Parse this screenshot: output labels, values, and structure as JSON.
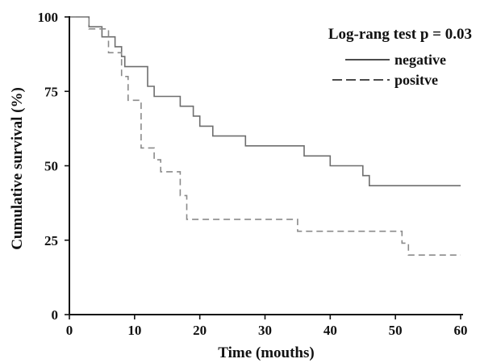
{
  "chart_data": {
    "type": "line",
    "subtype": "kaplan-meier step",
    "xlabel": "Time (mouths)",
    "ylabel": "Cumulative survival (%)",
    "xlim": [
      0,
      60
    ],
    "ylim": [
      0,
      100
    ],
    "xticks": [
      "0",
      "10",
      "20",
      "30",
      "40",
      "50",
      "60"
    ],
    "yticks": [
      "0",
      "25",
      "50",
      "75",
      "100"
    ],
    "grid": false,
    "legend_position": "top-right",
    "annotation": "Log-rang test p = 0.03",
    "series": [
      {
        "name": "negative",
        "color": "#6e6e6e",
        "line_style": "solid",
        "points": [
          [
            0,
            100
          ],
          [
            3,
            100
          ],
          [
            3,
            96.7
          ],
          [
            5,
            96.7
          ],
          [
            5,
            93.3
          ],
          [
            7,
            93.3
          ],
          [
            7,
            90
          ],
          [
            8,
            90
          ],
          [
            8,
            86.7
          ],
          [
            8.5,
            86.7
          ],
          [
            8.5,
            83.3
          ],
          [
            12,
            83.3
          ],
          [
            12,
            76.7
          ],
          [
            13,
            76.7
          ],
          [
            13,
            73.3
          ],
          [
            17,
            73.3
          ],
          [
            17,
            70
          ],
          [
            19,
            70
          ],
          [
            19,
            66.7
          ],
          [
            20,
            66.7
          ],
          [
            20,
            63.3
          ],
          [
            22,
            63.3
          ],
          [
            22,
            60
          ],
          [
            27,
            60
          ],
          [
            27,
            56.7
          ],
          [
            36,
            56.7
          ],
          [
            36,
            53.3
          ],
          [
            40,
            53.3
          ],
          [
            40,
            50
          ],
          [
            45,
            50
          ],
          [
            45,
            46.7
          ],
          [
            46,
            46.7
          ],
          [
            46,
            43.3
          ],
          [
            60,
            43.3
          ]
        ]
      },
      {
        "name": "positve",
        "color": "#8a8a8a",
        "line_style": "dashed",
        "points": [
          [
            0,
            100
          ],
          [
            3,
            100
          ],
          [
            3,
            96
          ],
          [
            6,
            96
          ],
          [
            6,
            88
          ],
          [
            8,
            88
          ],
          [
            8,
            80
          ],
          [
            9,
            80
          ],
          [
            9,
            72
          ],
          [
            11,
            72
          ],
          [
            11,
            56
          ],
          [
            13,
            56
          ],
          [
            13,
            52
          ],
          [
            14,
            52
          ],
          [
            14,
            48
          ],
          [
            17,
            48
          ],
          [
            17,
            40
          ],
          [
            18,
            40
          ],
          [
            18,
            32
          ],
          [
            35,
            32
          ],
          [
            35,
            28
          ],
          [
            51,
            28
          ],
          [
            51,
            24
          ],
          [
            52,
            24
          ],
          [
            52,
            20
          ],
          [
            60,
            20
          ]
        ]
      }
    ]
  }
}
